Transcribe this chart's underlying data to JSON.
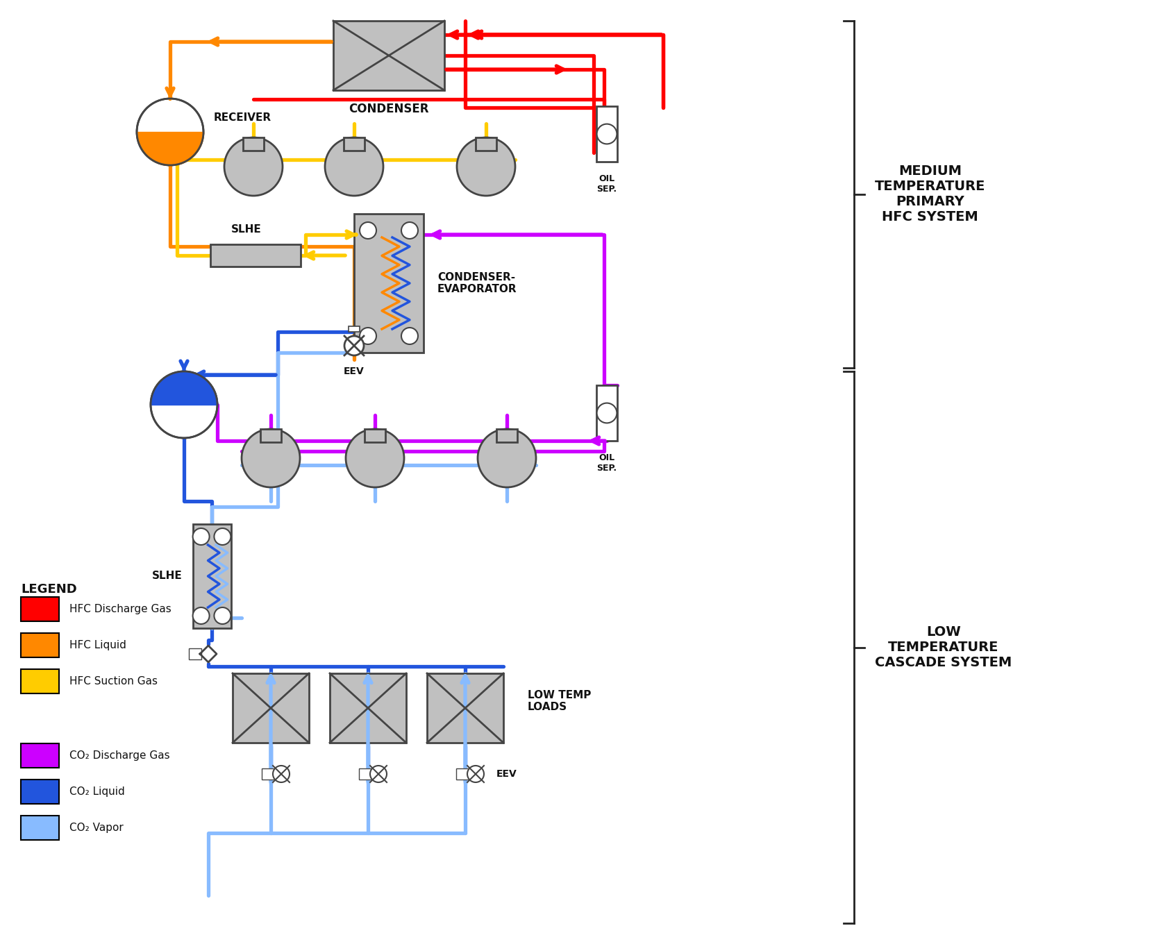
{
  "background": "#ffffff",
  "colors": {
    "hfc_discharge": "#ff0000",
    "hfc_liquid": "#ff8800",
    "hfc_suction": "#ffcc00",
    "co2_discharge": "#cc00ff",
    "co2_liquid": "#2255dd",
    "co2_vapor": "#88bbff",
    "component_fill": "#c0c0c0",
    "component_edge": "#444444",
    "text_color": "#111111",
    "bracket_color": "#222222"
  },
  "legend_title": "LEGEND",
  "legend_items": [
    {
      "color": "#ff0000",
      "label": "HFC Discharge Gas"
    },
    {
      "color": "#ff8800",
      "label": "HFC Liquid"
    },
    {
      "color": "#ffcc00",
      "label": "HFC Suction Gas"
    },
    {
      "color": "#cc00ff",
      "label": "CO₂ Discharge Gas"
    },
    {
      "color": "#2255dd",
      "label": "CO₂ Liquid"
    },
    {
      "color": "#88bbff",
      "label": "CO₂ Vapor"
    }
  ],
  "labels": {
    "receiver": "RECEIVER",
    "condenser": "CONDENSER",
    "oil_sep_top": "OIL\nSEP.",
    "slhe_top": "SLHE",
    "condenser_evaporator": "CONDENSER-\nEVAPORATOR",
    "eev_top": "EEV",
    "oil_sep_bottom": "OIL\nSEP.",
    "slhe_bottom": "SLHE",
    "eev_bottom": "EEV",
    "low_temp_loads": "LOW TEMP\nLOADS",
    "medium_temp": "MEDIUM\nTEMPERATURE\nPRIMARY\nHFC SYSTEM",
    "low_temp": "LOW\nTEMPERATURE\nCASCADE SYSTEM"
  }
}
